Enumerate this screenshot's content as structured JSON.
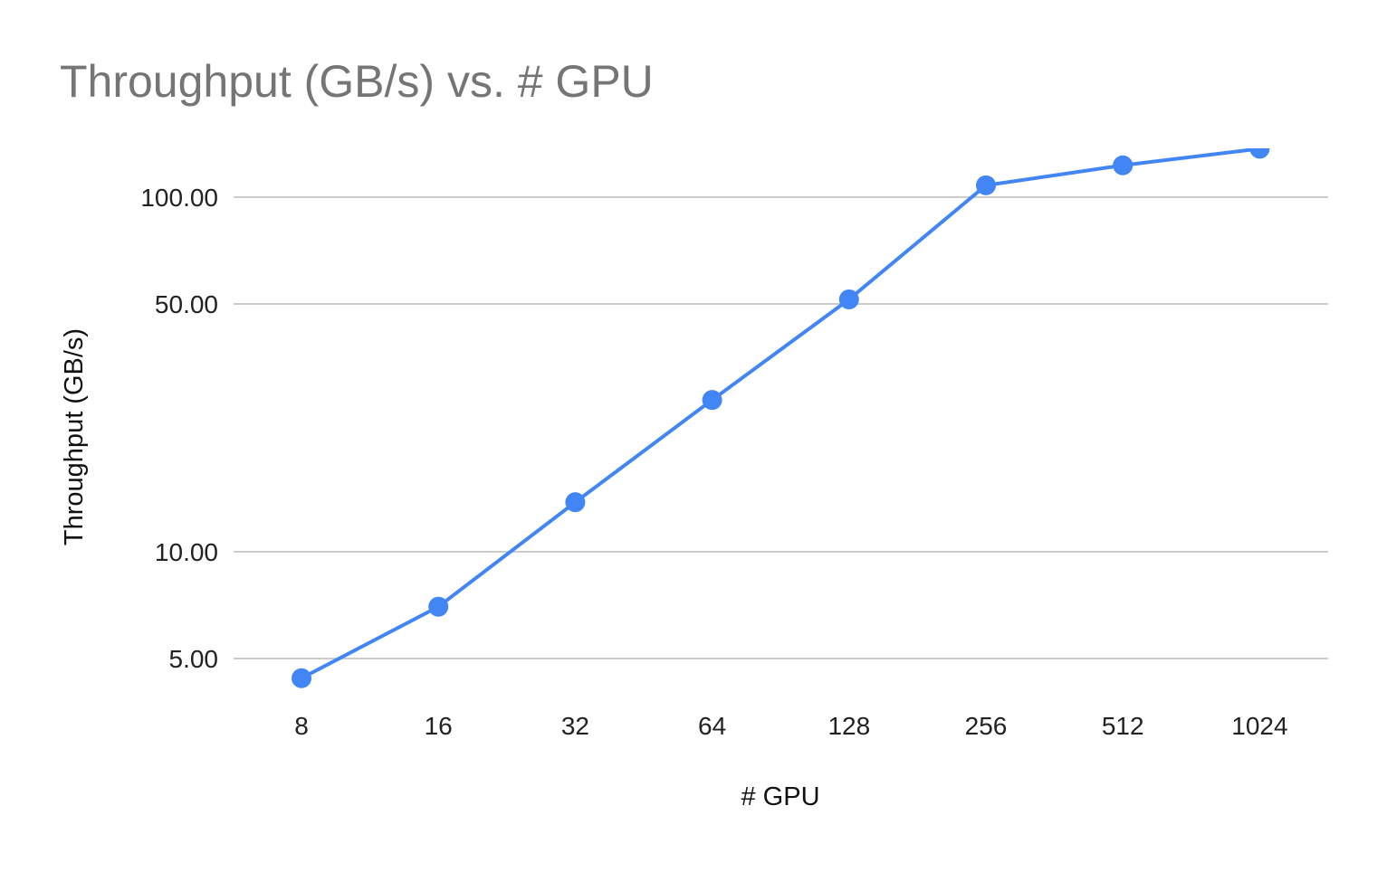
{
  "chart_data": {
    "type": "line",
    "title": "Throughput (GB/s) vs. # GPU",
    "xlabel": "# GPU",
    "ylabel": "Throughput (GB/s)",
    "y_scale": "log",
    "ylim": [
      4.3,
      132
    ],
    "grid": true,
    "legend": "none",
    "categories": [
      "8",
      "16",
      "32",
      "64",
      "128",
      "256",
      "512",
      "1024"
    ],
    "yticks": [
      {
        "value": 5,
        "label": "5.00"
      },
      {
        "value": 10,
        "label": "10.00"
      },
      {
        "value": 50,
        "label": "50.00"
      },
      {
        "value": 100,
        "label": "100.00"
      }
    ],
    "series": [
      {
        "values": [
          4.4,
          7.0,
          13.8,
          26.8,
          51.5,
          108,
          123,
          137
        ],
        "color": "#4285f4"
      }
    ]
  }
}
